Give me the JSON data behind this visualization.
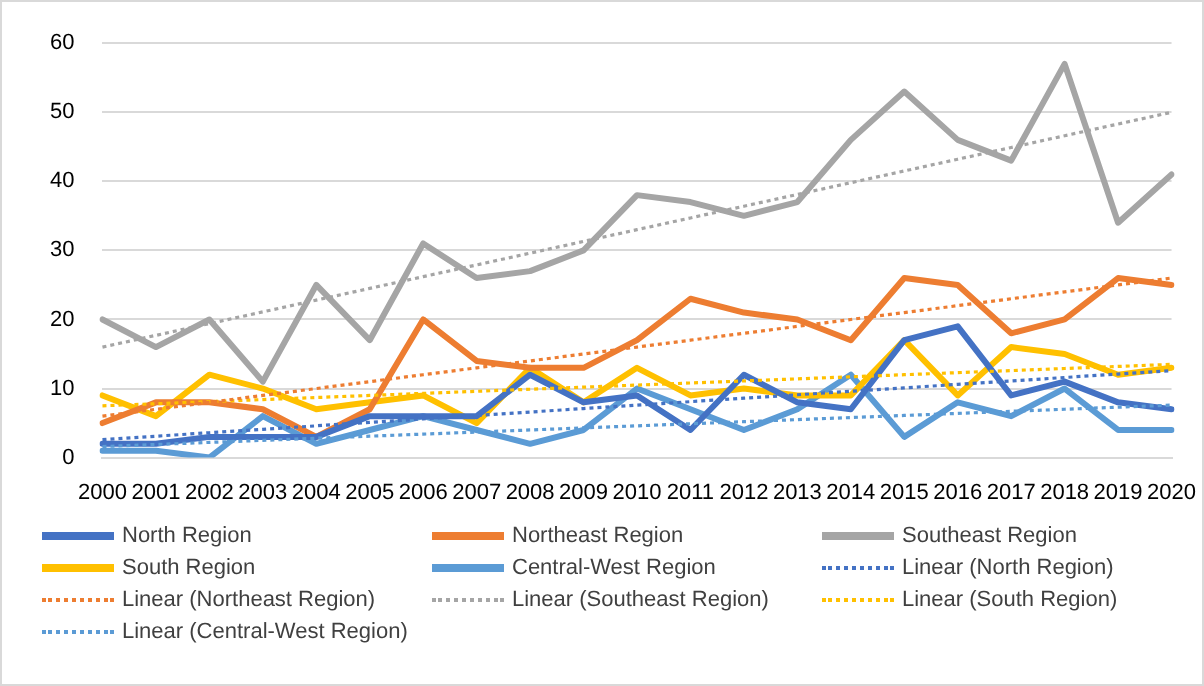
{
  "chart_data": {
    "type": "line",
    "categories": [
      "2000",
      "2001",
      "2002",
      "2003",
      "2004",
      "2005",
      "2006",
      "2007",
      "2008",
      "2009",
      "2010",
      "2011",
      "2012",
      "2013",
      "2014",
      "2015",
      "2016",
      "2017",
      "2018",
      "2019",
      "2020"
    ],
    "ylim": [
      0,
      60
    ],
    "yticks": [
      0,
      10,
      20,
      30,
      40,
      50,
      60
    ],
    "grid": "y",
    "legend": "bottom",
    "marker": "none",
    "line_style": "solid",
    "series": [
      {
        "name": "North Region",
        "color": "#4472c4",
        "values": [
          2,
          2,
          3,
          3,
          3,
          6,
          6,
          6,
          12,
          8,
          9,
          4,
          12,
          8,
          7,
          17,
          19,
          9,
          11,
          8,
          7
        ]
      },
      {
        "name": "Northeast Region",
        "color": "#ed7d31",
        "values": [
          5,
          8,
          8,
          7,
          3,
          7,
          20,
          14,
          13,
          13,
          17,
          23,
          21,
          20,
          17,
          26,
          25,
          18,
          20,
          26,
          25
        ]
      },
      {
        "name": "Southeast Region",
        "color": "#a5a5a5",
        "values": [
          20,
          16,
          20,
          11,
          25,
          17,
          31,
          26,
          27,
          30,
          38,
          37,
          35,
          37,
          46,
          53,
          46,
          43,
          57,
          34,
          41
        ]
      },
      {
        "name": "South Region",
        "color": "#ffc000",
        "values": [
          9,
          6,
          12,
          10,
          7,
          8,
          9,
          5,
          13,
          8,
          13,
          9,
          10,
          9,
          9,
          17,
          9,
          16,
          15,
          12,
          13
        ]
      },
      {
        "name": "Central-West Region",
        "color": "#5b9bd5",
        "values": [
          1,
          1,
          0,
          6,
          2,
          4,
          6,
          4,
          2,
          4,
          10,
          7,
          4,
          7,
          12,
          3,
          8,
          6,
          10,
          4,
          4
        ]
      },
      {
        "name": "Linear (North Region)",
        "color": "#4472c4",
        "type": "line",
        "line_style": "dotted",
        "values": [
          2.6,
          3.1,
          3.6,
          4.1,
          4.6,
          5.1,
          5.6,
          6.1,
          6.6,
          7.1,
          7.6,
          8.1,
          8.6,
          9.1,
          9.6,
          10.1,
          10.6,
          11.1,
          11.6,
          12.1,
          12.6
        ]
      },
      {
        "name": "Linear (Northeast Region)",
        "color": "#ed7d31",
        "type": "line",
        "line_style": "dotted",
        "values": [
          6,
          7,
          8,
          9,
          10,
          11,
          12,
          13,
          14,
          15,
          16,
          17,
          18,
          19,
          20,
          21,
          22,
          23,
          24,
          25,
          26
        ]
      },
      {
        "name": "Linear (Southeast Region)",
        "color": "#a5a5a5",
        "type": "line",
        "line_style": "dotted",
        "values": [
          16,
          17.7,
          19.4,
          21.1,
          22.8,
          24.5,
          26.2,
          27.9,
          29.6,
          31.3,
          33,
          34.7,
          36.4,
          38.1,
          39.8,
          41.5,
          43.2,
          44.9,
          46.6,
          48.3,
          50
        ]
      },
      {
        "name": "Linear (South Region)",
        "color": "#ffc000",
        "type": "line",
        "line_style": "dotted",
        "values": [
          7.5,
          7.8,
          8.1,
          8.4,
          8.7,
          9,
          9.3,
          9.6,
          9.9,
          10.2,
          10.5,
          10.8,
          11.1,
          11.4,
          11.7,
          12,
          12.3,
          12.6,
          12.9,
          13.2,
          13.5
        ]
      },
      {
        "name": "Linear (Central-West Region)",
        "color": "#5b9bd5",
        "type": "line",
        "line_style": "dotted",
        "values": [
          1.6,
          1.9,
          2.2,
          2.5,
          2.8,
          3.1,
          3.4,
          3.7,
          4,
          4.3,
          4.6,
          4.9,
          5.2,
          5.5,
          5.8,
          6.1,
          6.4,
          6.7,
          7,
          7.3,
          7.6
        ]
      }
    ]
  }
}
